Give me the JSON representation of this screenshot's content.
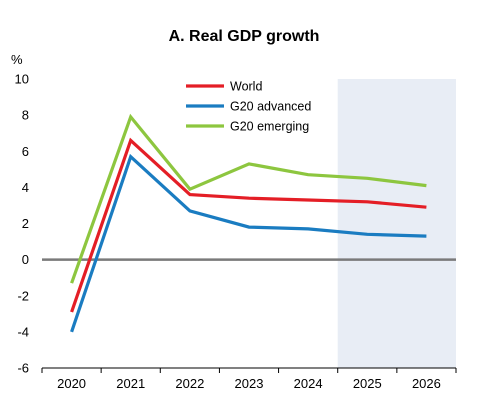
{
  "chart_data": {
    "type": "line",
    "title": "A. Real GDP growth",
    "ylabel": "%",
    "xlabel": "",
    "categories": [
      "2020",
      "2021",
      "2022",
      "2023",
      "2024",
      "2025",
      "2026"
    ],
    "ylim": [
      -6,
      10
    ],
    "yticks": [
      "10",
      "8",
      "6",
      "4",
      "2",
      "0",
      "-2",
      "-4",
      "-6"
    ],
    "grid": false,
    "projection_shading_from": "2025",
    "legend_position": "top-center",
    "series": [
      {
        "name": "World",
        "color": "#e41e26",
        "values": [
          -2.9,
          6.6,
          3.6,
          3.4,
          3.3,
          3.2,
          2.9
        ]
      },
      {
        "name": "G20 advanced",
        "color": "#1a7cc1",
        "values": [
          -4.0,
          5.7,
          2.7,
          1.8,
          1.7,
          1.4,
          1.3
        ]
      },
      {
        "name": "G20 emerging",
        "color": "#8dc63f",
        "values": [
          -1.3,
          7.9,
          3.9,
          5.3,
          4.7,
          4.5,
          4.1
        ]
      }
    ]
  },
  "colors": {
    "projection_band": "#e8edf5",
    "zero_line": "#7a7a7a",
    "axis": "#000000"
  }
}
